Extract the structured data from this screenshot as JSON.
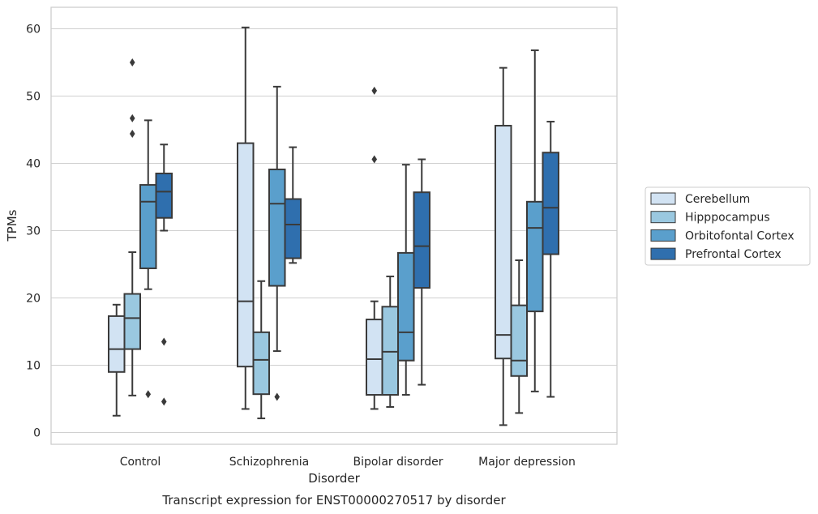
{
  "chart_data": {
    "type": "box",
    "title": "",
    "caption": "Transcript expression for ENST00000270517 by disorder",
    "xlabel": "Disorder",
    "ylabel": "TPMs",
    "categories": [
      "Control",
      "Schizophrenia",
      "Bipolar disorder",
      "Major depression"
    ],
    "y_ticks": [
      0,
      10,
      20,
      30,
      40,
      50,
      60
    ],
    "ylim": [
      -1.7,
      63.2
    ],
    "grid": "horizontal",
    "legend_position": "center-right",
    "series": [
      {
        "name": "Cerebellum",
        "color": "#d2e3f3",
        "boxes": [
          {
            "whisker_low": 2.5,
            "q1": 9.0,
            "median": 12.4,
            "q3": 17.3,
            "whisker_high": 19.0,
            "outliers": []
          },
          {
            "whisker_low": 3.5,
            "q1": 9.8,
            "median": 19.5,
            "q3": 43.0,
            "whisker_high": 60.2,
            "outliers": []
          },
          {
            "whisker_low": 3.5,
            "q1": 5.6,
            "median": 10.9,
            "q3": 16.8,
            "whisker_high": 19.5,
            "outliers": [
              40.6,
              50.8
            ]
          },
          {
            "whisker_low": 1.1,
            "q1": 11.0,
            "median": 14.5,
            "q3": 45.6,
            "whisker_high": 54.2,
            "outliers": []
          }
        ]
      },
      {
        "name": "Hipppocampus",
        "color": "#9ac8e0",
        "boxes": [
          {
            "whisker_low": 5.5,
            "q1": 12.4,
            "median": 17.0,
            "q3": 20.6,
            "whisker_high": 26.8,
            "outliers": [
              44.4,
              46.7,
              55.0
            ]
          },
          {
            "whisker_low": 2.1,
            "q1": 5.7,
            "median": 10.8,
            "q3": 14.9,
            "whisker_high": 22.5,
            "outliers": []
          },
          {
            "whisker_low": 3.8,
            "q1": 5.6,
            "median": 12.0,
            "q3": 18.7,
            "whisker_high": 23.2,
            "outliers": []
          },
          {
            "whisker_low": 2.9,
            "q1": 8.4,
            "median": 10.7,
            "q3": 18.9,
            "whisker_high": 25.6,
            "outliers": []
          }
        ]
      },
      {
        "name": "Orbitofontal Cortex",
        "color": "#5a9fcc",
        "boxes": [
          {
            "whisker_low": 21.3,
            "q1": 24.4,
            "median": 34.3,
            "q3": 36.8,
            "whisker_high": 46.4,
            "outliers": [
              5.7
            ]
          },
          {
            "whisker_low": 12.1,
            "q1": 21.8,
            "median": 34.0,
            "q3": 39.1,
            "whisker_high": 51.4,
            "outliers": [
              5.3
            ]
          },
          {
            "whisker_low": 5.6,
            "q1": 10.7,
            "median": 14.9,
            "q3": 26.7,
            "whisker_high": 39.8,
            "outliers": []
          },
          {
            "whisker_low": 6.1,
            "q1": 18.0,
            "median": 30.4,
            "q3": 34.3,
            "whisker_high": 56.8,
            "outliers": []
          }
        ]
      },
      {
        "name": "Prefrontal Cortex",
        "color": "#2f6fae",
        "boxes": [
          {
            "whisker_low": 30.0,
            "q1": 31.9,
            "median": 35.8,
            "q3": 38.5,
            "whisker_high": 42.8,
            "outliers": [
              4.6,
              13.5
            ]
          },
          {
            "whisker_low": 25.2,
            "q1": 25.9,
            "median": 30.9,
            "q3": 34.7,
            "whisker_high": 42.4,
            "outliers": []
          },
          {
            "whisker_low": 7.1,
            "q1": 21.5,
            "median": 27.7,
            "q3": 35.7,
            "whisker_high": 40.6,
            "outliers": []
          },
          {
            "whisker_low": 5.3,
            "q1": 26.5,
            "median": 33.4,
            "q3": 41.6,
            "whisker_high": 46.2,
            "outliers": []
          }
        ]
      }
    ]
  }
}
